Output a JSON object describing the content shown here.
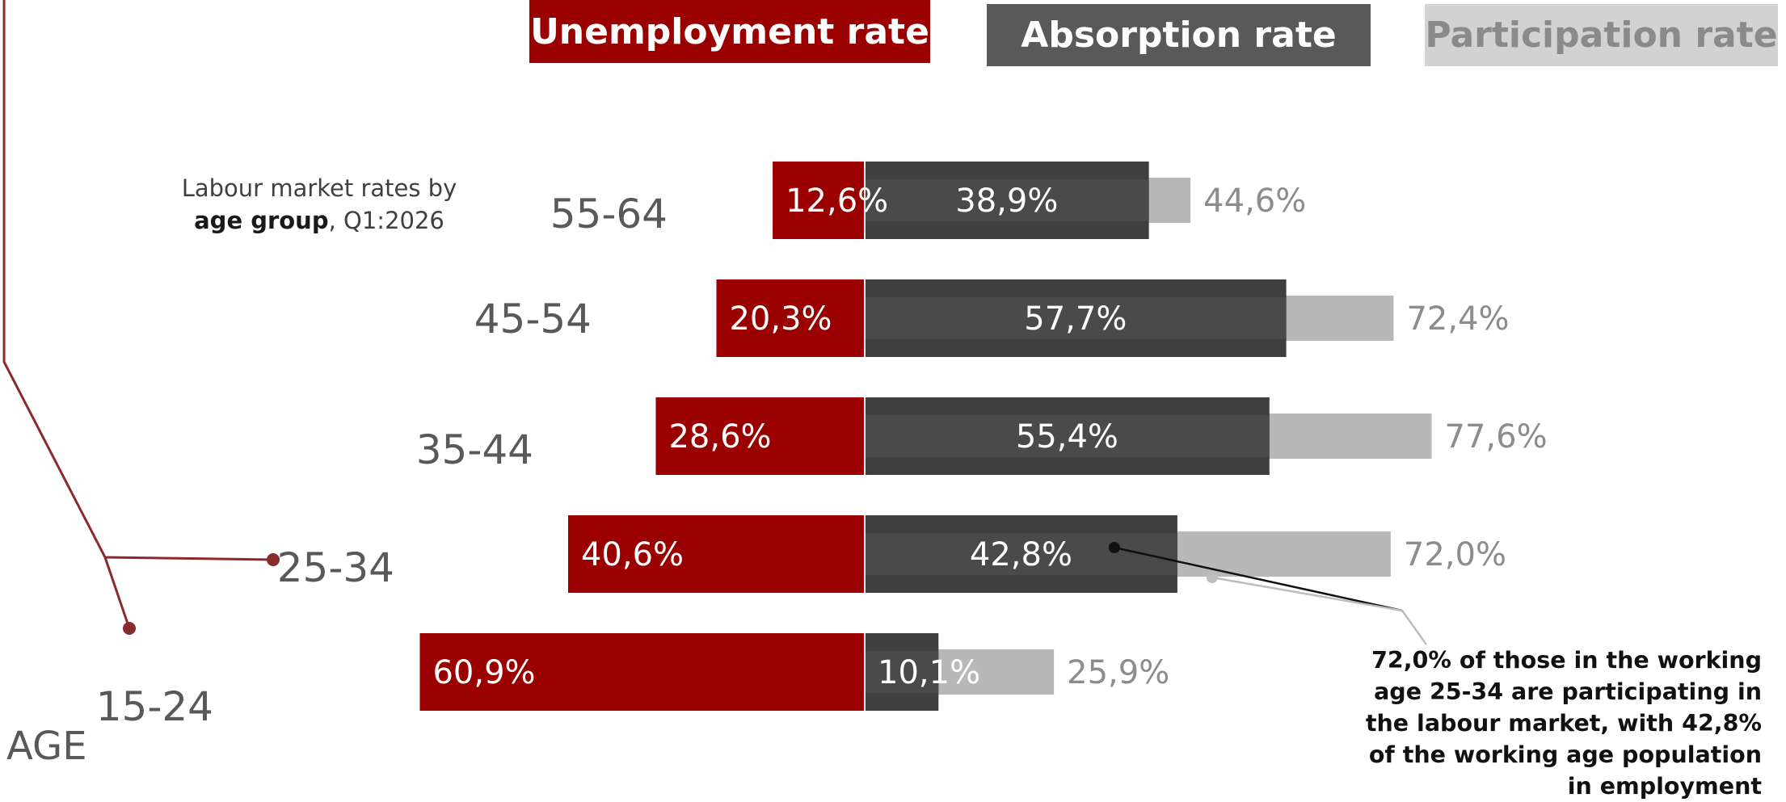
{
  "legend": {
    "unemployment": "Unemployment rate",
    "absorption": "Absorption rate",
    "participation": "Participation rate"
  },
  "subtitle": {
    "line1": "Labour market rates by",
    "bold": "age group",
    "rest": ", Q1:2026"
  },
  "axis_label": "AGE",
  "annotation": {
    "line1": "72,0% of those in the working",
    "line2": "age  25-34 are participating in",
    "line3": "the labour market, with 42,8%",
    "line4": "of  the working age population",
    "line5": "in employment"
  },
  "colors": {
    "unemployment": "#9a0000",
    "absorption": "#3f3f3f",
    "participation": "#b8b8b8"
  },
  "chart_data": {
    "type": "bar",
    "title": "",
    "categories": [
      "55-64",
      "45-54",
      "35-44",
      "25-34",
      "15-24"
    ],
    "series": [
      {
        "name": "Unemployment rate",
        "values": [
          12.6,
          20.3,
          28.6,
          40.6,
          60.9
        ]
      },
      {
        "name": "Absorption rate",
        "values": [
          38.9,
          57.7,
          55.4,
          42.8,
          10.1
        ]
      },
      {
        "name": "Participation rate",
        "values": [
          44.6,
          72.4,
          77.6,
          72.0,
          25.9
        ]
      }
    ],
    "value_labels": {
      "Unemployment rate": [
        "12,6%",
        "20,3%",
        "28,6%",
        "40,6%",
        "60,9%"
      ],
      "Absorption rate": [
        "38,9%",
        "57,7%",
        "55,4%",
        "42,8%",
        "10,1%"
      ],
      "Participation rate": [
        "44,6%",
        "72,4%",
        "77,6%",
        "72,0%",
        "25,9%"
      ]
    },
    "ylabel": "AGE",
    "xlim": [
      -61,
      78
    ],
    "grid": false,
    "legend_position": "top"
  }
}
